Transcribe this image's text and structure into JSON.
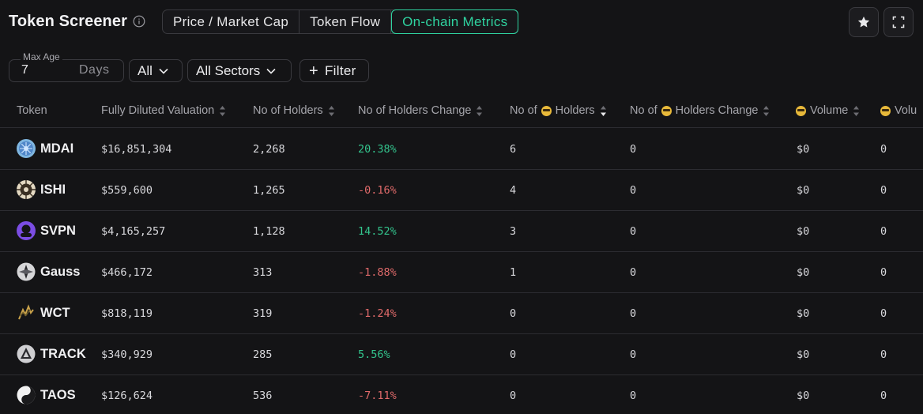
{
  "header": {
    "title": "Token Screener",
    "tabs": [
      {
        "label": "Price / Market Cap",
        "active": false
      },
      {
        "label": "Token Flow",
        "active": false
      },
      {
        "label": "On-chain Metrics",
        "active": true
      }
    ]
  },
  "filters": {
    "max_age_label": "Max Age",
    "max_age_value": "7",
    "max_age_unit": "Days",
    "chain_select": "All",
    "sector_select": "All Sectors",
    "filter_button": "Filter"
  },
  "table": {
    "columns": [
      "Token",
      "Fully Diluted Valuation",
      "No of Holders",
      "No of Holders Change",
      "No of",
      "Holders",
      "No of",
      "Holders Change",
      "Volume",
      "Volu"
    ],
    "rows": [
      {
        "symbol": "MDAI",
        "fdv": "$16,851,304",
        "holders": "2,268",
        "holders_change": "20.38%",
        "direction": "up",
        "smart_holders": "6",
        "smart_holders_change": "0",
        "smart_volume": "$0",
        "extra": "0"
      },
      {
        "symbol": "ISHI",
        "fdv": "$559,600",
        "holders": "1,265",
        "holders_change": "-0.16%",
        "direction": "down",
        "smart_holders": "4",
        "smart_holders_change": "0",
        "smart_volume": "$0",
        "extra": "0"
      },
      {
        "symbol": "SVPN",
        "fdv": "$4,165,257",
        "holders": "1,128",
        "holders_change": "14.52%",
        "direction": "up",
        "smart_holders": "3",
        "smart_holders_change": "0",
        "smart_volume": "$0",
        "extra": "0"
      },
      {
        "symbol": "Gauss",
        "fdv": "$466,172",
        "holders": "313",
        "holders_change": "-1.88%",
        "direction": "down",
        "smart_holders": "1",
        "smart_holders_change": "0",
        "smart_volume": "$0",
        "extra": "0"
      },
      {
        "symbol": "WCT",
        "fdv": "$818,119",
        "holders": "319",
        "holders_change": "-1.24%",
        "direction": "down",
        "smart_holders": "0",
        "smart_holders_change": "0",
        "smart_volume": "$0",
        "extra": "0"
      },
      {
        "symbol": "TRACK",
        "fdv": "$340,929",
        "holders": "285",
        "holders_change": "5.56%",
        "direction": "up",
        "smart_holders": "0",
        "smart_holders_change": "0",
        "smart_volume": "$0",
        "extra": "0"
      },
      {
        "symbol": "TAOS",
        "fdv": "$126,624",
        "holders": "536",
        "holders_change": "-7.11%",
        "direction": "down",
        "smart_holders": "0",
        "smart_holders_change": "0",
        "smart_volume": "$0",
        "extra": "0"
      }
    ]
  },
  "colors": {
    "background": "#141416",
    "accent": "#2fd3a0",
    "positive": "#33c48d",
    "negative": "#e06a6a"
  },
  "icons": {
    "info": "info-icon",
    "star": "star-icon",
    "fullscreen": "fullscreen-icon",
    "sort": "sort-icon",
    "smart_money": "sunglasses-emoji-icon"
  }
}
